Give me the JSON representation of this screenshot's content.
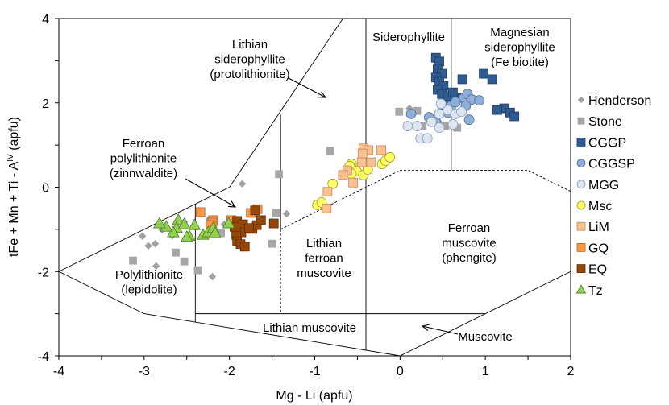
{
  "chart_data": {
    "type": "scatter",
    "xlabel": "Mg - Li (apfu)",
    "ylabel": {
      "main": "tFe + Mn + Ti - A",
      "sup": "IV",
      "unit": " (apfu)"
    },
    "xlim": [
      -4,
      2
    ],
    "ylim": [
      -4,
      4
    ],
    "xticks": [
      "-4",
      "-3",
      "-2",
      "-1",
      "0",
      "1",
      "2"
    ],
    "yticks": [
      "-4",
      "-2",
      "0",
      "2",
      "4"
    ],
    "grid": false,
    "legend_position": "right",
    "field_labels": {
      "lithian_siderophyllite": [
        "Lithian",
        "siderophyllite",
        "(protolithionite)"
      ],
      "siderophyllite": [
        "Siderophyllite"
      ],
      "magnesian_siderophyllite": [
        "Magnesian",
        "siderophyllite",
        "(Fe biotite)"
      ],
      "ferroan_polylithionite": [
        "Ferroan",
        "polylithionite",
        "(zinnwaldite)"
      ],
      "polylithionite": [
        "Polylithionite",
        "(lepidolite)"
      ],
      "lithian_ferroan_muscovite": [
        "Lithian",
        "ferroan",
        "muscovite"
      ],
      "ferroan_muscovite": [
        "Ferroan",
        "muscovite",
        "(phengite)"
      ],
      "lithian_muscovite": [
        "Lithian muscovite"
      ],
      "muscovite": [
        "Muscovite"
      ]
    },
    "series": [
      {
        "name": "Henderson",
        "marker": "diamond",
        "color": "#a0a0a0",
        "stroke": "#a0a0a0",
        "points": [
          [
            -3.02,
            -1.16
          ],
          [
            -2.95,
            -1.39
          ],
          [
            -2.87,
            -1.34
          ],
          [
            -2.86,
            -1.87
          ],
          [
            -2.79,
            -1.01
          ],
          [
            -2.67,
            -1.15
          ],
          [
            -2.53,
            -0.82
          ],
          [
            -2.2,
            -2.12
          ],
          [
            -1.33,
            -0.63
          ],
          [
            -2.24,
            -0.76
          ],
          [
            -2.06,
            -0.88
          ],
          [
            -1.85,
            0.08
          ],
          [
            0.11,
            1.87
          ]
        ]
      },
      {
        "name": "Stone",
        "marker": "square",
        "color": "#a6a6a6",
        "stroke": "#a6a6a6",
        "points": [
          [
            -3.13,
            -1.74
          ],
          [
            -2.63,
            -1.55
          ],
          [
            -2.53,
            -1.76
          ],
          [
            -2.37,
            -1.97
          ],
          [
            -2.1,
            -1.09
          ],
          [
            -1.5,
            -1.34
          ],
          [
            -1.45,
            -0.61
          ],
          [
            -1.42,
            0.31
          ],
          [
            -0.82,
            0.86
          ],
          [
            -0.01,
            1.79
          ],
          [
            0.2,
            1.81
          ],
          [
            0.26,
            1.45
          ],
          [
            0.44,
            1.49
          ],
          [
            0.53,
            1.45
          ],
          [
            0.67,
            1.41
          ],
          [
            -0.4,
            0.9
          ]
        ]
      },
      {
        "name": "CGGP",
        "marker": "square",
        "color": "#2f5b92",
        "stroke": "#1f3d63",
        "points": [
          [
            0.42,
            3.07
          ],
          [
            0.46,
            2.98
          ],
          [
            0.44,
            2.79
          ],
          [
            0.49,
            2.69
          ],
          [
            0.42,
            2.6
          ],
          [
            0.46,
            2.5
          ],
          [
            0.51,
            2.4
          ],
          [
            0.44,
            2.31
          ],
          [
            0.49,
            2.21
          ],
          [
            0.56,
            2.16
          ],
          [
            0.73,
            2.56
          ],
          [
            0.98,
            2.69
          ],
          [
            1.08,
            2.56
          ],
          [
            1.22,
            1.87
          ],
          [
            1.14,
            1.83
          ],
          [
            1.29,
            1.77
          ],
          [
            1.34,
            1.68
          ],
          [
            0.51,
            1.93
          ],
          [
            0.73,
            2.12
          ],
          [
            0.62,
            2.25
          ]
        ]
      },
      {
        "name": "CGGSP",
        "marker": "circle",
        "color": "#8eaed8",
        "stroke": "#4f6f9a",
        "points": [
          [
            0.6,
            1.93
          ],
          [
            0.65,
            2.02
          ],
          [
            0.75,
            2.12
          ],
          [
            0.79,
            2.21
          ],
          [
            0.84,
            2.08
          ],
          [
            0.77,
            1.93
          ],
          [
            0.93,
            2.06
          ],
          [
            0.34,
            1.66
          ],
          [
            0.42,
            1.55
          ],
          [
            0.81,
            1.6
          ],
          [
            0.56,
            1.77
          ],
          [
            0.13,
            1.74
          ]
        ]
      },
      {
        "name": "MGG",
        "marker": "circle",
        "color": "#dce6f2",
        "stroke": "#8a9ab0",
        "points": [
          [
            0.2,
            1.45
          ],
          [
            0.24,
            1.16
          ],
          [
            0.32,
            1.16
          ],
          [
            0.46,
            1.74
          ],
          [
            0.56,
            1.83
          ],
          [
            0.65,
            1.74
          ],
          [
            0.72,
            1.79
          ],
          [
            0.37,
            1.55
          ],
          [
            0.46,
            1.41
          ],
          [
            0.62,
            1.49
          ],
          [
            0.48,
            1.98
          ],
          [
            0.09,
            1.45
          ]
        ]
      },
      {
        "name": "Msc",
        "marker": "circle",
        "color": "#ffff66",
        "stroke": "#9a9a30",
        "points": [
          [
            -0.97,
            -0.42
          ],
          [
            -0.92,
            -0.36
          ],
          [
            -0.79,
            0.08
          ],
          [
            -0.57,
            0.55
          ],
          [
            -0.59,
            0.5
          ],
          [
            -0.51,
            0.38
          ],
          [
            -0.43,
            0.29
          ],
          [
            -0.38,
            0.42
          ],
          [
            -0.21,
            0.55
          ],
          [
            -0.17,
            0.63
          ],
          [
            -0.12,
            0.71
          ],
          [
            -0.57,
            0.32
          ]
        ]
      },
      {
        "name": "LiM",
        "marker": "square",
        "color": "#fac090",
        "stroke": "#c08a5a",
        "points": [
          [
            -0.43,
            0.92
          ],
          [
            -0.37,
            0.88
          ],
          [
            -0.22,
            0.88
          ],
          [
            -0.44,
            0.8
          ],
          [
            -0.45,
            0.59
          ],
          [
            -0.34,
            0.59
          ],
          [
            -0.62,
            0.4
          ],
          [
            -0.67,
            0.29
          ],
          [
            -0.55,
            0.11
          ],
          [
            -0.85,
            -0.11
          ],
          [
            -0.86,
            -0.5
          ]
        ]
      },
      {
        "name": "GQ",
        "marker": "square",
        "color": "#f79646",
        "stroke": "#b86a2a",
        "points": [
          [
            -2.34,
            -0.59
          ],
          [
            -2.19,
            -0.78
          ],
          [
            -2.2,
            -0.84
          ],
          [
            -1.98,
            -0.78
          ],
          [
            -1.75,
            -0.61
          ],
          [
            -1.67,
            -0.52
          ],
          [
            -2.22,
            -0.9
          ]
        ]
      },
      {
        "name": "EQ",
        "marker": "square",
        "color": "#974706",
        "stroke": "#5e2c03",
        "points": [
          [
            -1.91,
            -0.8
          ],
          [
            -1.84,
            -0.88
          ],
          [
            -1.86,
            -1.07
          ],
          [
            -1.92,
            -1.13
          ],
          [
            -1.91,
            -1.28
          ],
          [
            -1.87,
            -1.35
          ],
          [
            -1.82,
            -1.41
          ],
          [
            -1.73,
            -0.99
          ],
          [
            -1.68,
            -0.9
          ],
          [
            -1.63,
            -0.78
          ],
          [
            -1.48,
            -0.86
          ],
          [
            -1.7,
            -0.55
          ],
          [
            -1.77,
            -0.97
          ],
          [
            -1.94,
            -0.94
          ]
        ]
      },
      {
        "name": "Tz",
        "marker": "triangle",
        "color": "#92d050",
        "stroke": "#4f7a2a",
        "points": [
          [
            -2.6,
            -0.78
          ],
          [
            -2.62,
            -0.97
          ],
          [
            -2.53,
            -0.88
          ],
          [
            -2.66,
            -1.07
          ],
          [
            -2.41,
            -0.9
          ],
          [
            -2.47,
            -1.16
          ],
          [
            -2.5,
            -1.18
          ],
          [
            -2.31,
            -1.13
          ],
          [
            -2.25,
            -1.07
          ],
          [
            -2.19,
            -0.97
          ],
          [
            -2.17,
            -1.09
          ],
          [
            -2.01,
            -0.86
          ],
          [
            -2.74,
            -0.94
          ],
          [
            -2.82,
            -0.86
          ]
        ]
      }
    ]
  }
}
